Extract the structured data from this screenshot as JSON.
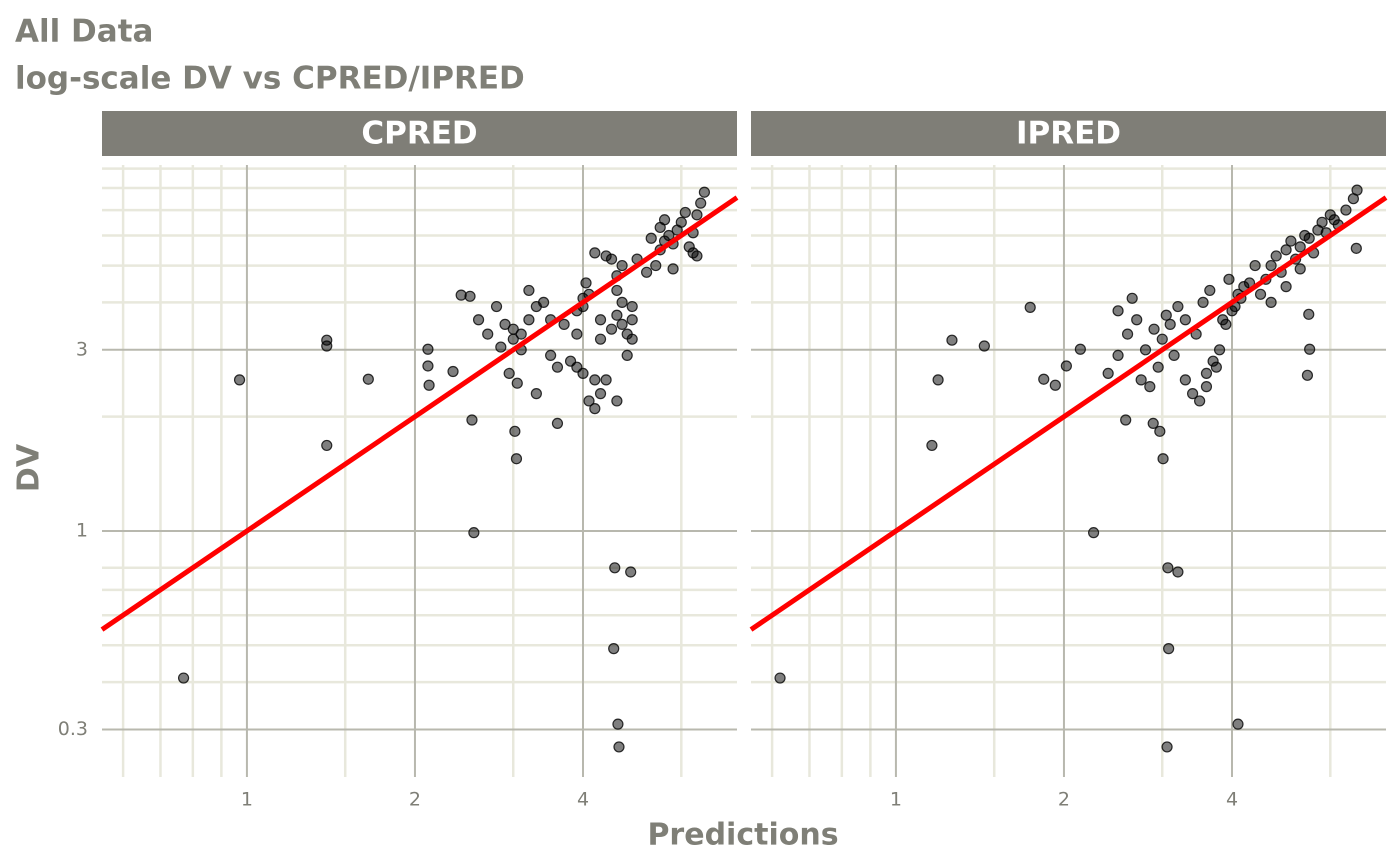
{
  "title": "All Data",
  "subtitle": "log-scale DV vs CPRED/IPRED",
  "x_label": "Predictions",
  "y_label": "DV",
  "chart_data": [
    {
      "type": "scatter",
      "panel_title": "CPRED",
      "xlog": true,
      "ylog": true,
      "grid": true,
      "xlim": [
        0.55,
        7.55
      ],
      "ylim": [
        0.225,
        9.2
      ],
      "xticks": [
        1,
        2,
        4
      ],
      "yticks": [
        0.3,
        1,
        3
      ],
      "xminor": [
        0.6,
        0.7,
        0.8,
        0.9,
        1.5,
        3,
        6
      ],
      "yminor": [
        0.4,
        0.5,
        0.6,
        0.7,
        0.8,
        2,
        4,
        5,
        6,
        7,
        8,
        9
      ],
      "color": "#000000",
      "identity_line": true,
      "identity_color": "#ff0000",
      "x": [
        0.77,
        0.97,
        1.39,
        1.39,
        1.39,
        1.65,
        2.11,
        2.11,
        2.12,
        2.34,
        2.42,
        2.51,
        2.53,
        2.55,
        3.02,
        3.04,
        3.6,
        4.56,
        4.87,
        4.54,
        4.62,
        4.64,
        2.6,
        2.7,
        2.8,
        2.9,
        3.0,
        3.0,
        3.1,
        3.1,
        3.2,
        2.95,
        3.05,
        2.85,
        3.3,
        3.4,
        3.5,
        3.2,
        3.6,
        3.7,
        3.5,
        3.3,
        3.8,
        3.9,
        4.0,
        4.0,
        4.1,
        4.0,
        3.9,
        4.2,
        4.1,
        4.2,
        4.3,
        4.3,
        4.4,
        4.5,
        4.2,
        4.4,
        3.9,
        4.05,
        4.3,
        4.6,
        4.6,
        4.7,
        4.8,
        4.9,
        4.6,
        4.7,
        4.9,
        4.5,
        4.8,
        4.9,
        4.7,
        5.0,
        4.6,
        5.2,
        5.4,
        5.5,
        5.6,
        5.7,
        5.8,
        5.9,
        6.0,
        5.5,
        5.6,
        6.2,
        6.3,
        6.4,
        6.5,
        6.6,
        6.3,
        6.1,
        5.3,
        5.8,
        6.4
      ],
      "y": [
        0.41,
        2.5,
        3.18,
        3.07,
        1.68,
        2.51,
        3.01,
        2.72,
        2.42,
        2.63,
        4.18,
        4.15,
        1.96,
        0.99,
        1.83,
        1.55,
        1.92,
        0.8,
        0.78,
        0.49,
        0.31,
        0.27,
        3.6,
        3.3,
        3.9,
        3.5,
        3.2,
        3.4,
        3.3,
        3.0,
        3.6,
        2.6,
        2.45,
        3.05,
        3.9,
        4.0,
        3.6,
        4.3,
        2.7,
        3.5,
        2.9,
        2.3,
        2.8,
        2.7,
        2.6,
        3.9,
        4.2,
        4.1,
        3.8,
        2.5,
        2.2,
        2.1,
        2.3,
        3.6,
        2.5,
        5.2,
        5.4,
        5.3,
        3.3,
        4.5,
        3.2,
        2.2,
        3.7,
        3.5,
        3.3,
        3.6,
        4.3,
        4.0,
        3.9,
        3.4,
        2.9,
        3.2,
        5.0,
        5.2,
        4.7,
        4.8,
        5.0,
        5.5,
        5.8,
        6.0,
        5.7,
        6.2,
        6.5,
        6.3,
        6.6,
        5.6,
        5.4,
        6.8,
        7.3,
        7.8,
        6.1,
        6.9,
        5.9,
        4.9,
        5.3
      ]
    },
    {
      "type": "scatter",
      "panel_title": "IPRED",
      "xlog": true,
      "ylog": true,
      "grid": true,
      "xlim": [
        0.55,
        7.55
      ],
      "ylim": [
        0.225,
        9.2
      ],
      "xticks": [
        1,
        2,
        4
      ],
      "yticks": [
        0.3,
        1,
        3
      ],
      "xminor": [
        0.6,
        0.7,
        0.8,
        0.9,
        1.5,
        3,
        6
      ],
      "yminor": [
        0.4,
        0.5,
        0.6,
        0.7,
        0.8,
        2,
        4,
        5,
        6,
        7,
        8,
        9
      ],
      "color": "#000000",
      "identity_line": true,
      "identity_color": "#ff0000",
      "x": [
        0.62,
        1.16,
        1.19,
        1.26,
        1.44,
        1.74,
        1.84,
        1.93,
        2.02,
        2.14,
        2.26,
        2.58,
        2.89,
        2.97,
        3.01,
        3.07,
        3.2,
        3.08,
        3.06,
        4.1,
        5.49,
        5.51,
        5.46,
        6.68,
        2.4,
        2.5,
        2.6,
        2.7,
        2.8,
        2.9,
        3.0,
        3.1,
        2.5,
        2.75,
        2.95,
        3.05,
        2.65,
        2.85,
        3.15,
        3.2,
        3.3,
        3.4,
        3.5,
        3.6,
        3.7,
        3.8,
        3.9,
        4.0,
        4.1,
        4.2,
        3.45,
        3.55,
        3.65,
        3.75,
        3.85,
        3.95,
        4.05,
        4.15,
        4.3,
        4.4,
        3.3,
        3.6,
        4.5,
        4.6,
        4.7,
        4.8,
        4.9,
        5.0,
        5.1,
        5.2,
        5.3,
        5.4,
        5.5,
        5.6,
        5.7,
        5.8,
        5.9,
        6.0,
        6.2,
        6.4,
        6.6,
        6.7,
        4.7,
        5.0,
        5.3,
        6.1
      ],
      "y": [
        0.41,
        1.68,
        2.5,
        3.18,
        3.07,
        3.88,
        2.51,
        2.42,
        2.72,
        3.01,
        0.99,
        1.96,
        1.92,
        1.83,
        1.55,
        0.8,
        0.78,
        0.49,
        0.27,
        0.31,
        3.72,
        3.01,
        2.57,
        5.55,
        2.6,
        2.9,
        3.3,
        3.6,
        3.0,
        3.4,
        3.2,
        3.5,
        3.8,
        2.5,
        2.7,
        3.7,
        4.1,
        2.4,
        2.9,
        3.9,
        2.5,
        2.3,
        2.2,
        2.6,
        2.8,
        3.0,
        3.5,
        3.8,
        4.2,
        4.4,
        3.3,
        4.0,
        4.3,
        2.7,
        3.6,
        4.6,
        3.9,
        4.1,
        4.5,
        5.0,
        3.6,
        2.4,
        4.2,
        4.6,
        5.0,
        5.3,
        4.8,
        5.5,
        5.8,
        5.2,
        5.6,
        6.0,
        5.9,
        5.4,
        6.2,
        6.5,
        6.1,
        6.8,
        6.4,
        7.0,
        7.5,
        7.9,
        4.0,
        4.4,
        4.9,
        6.6
      ]
    }
  ]
}
